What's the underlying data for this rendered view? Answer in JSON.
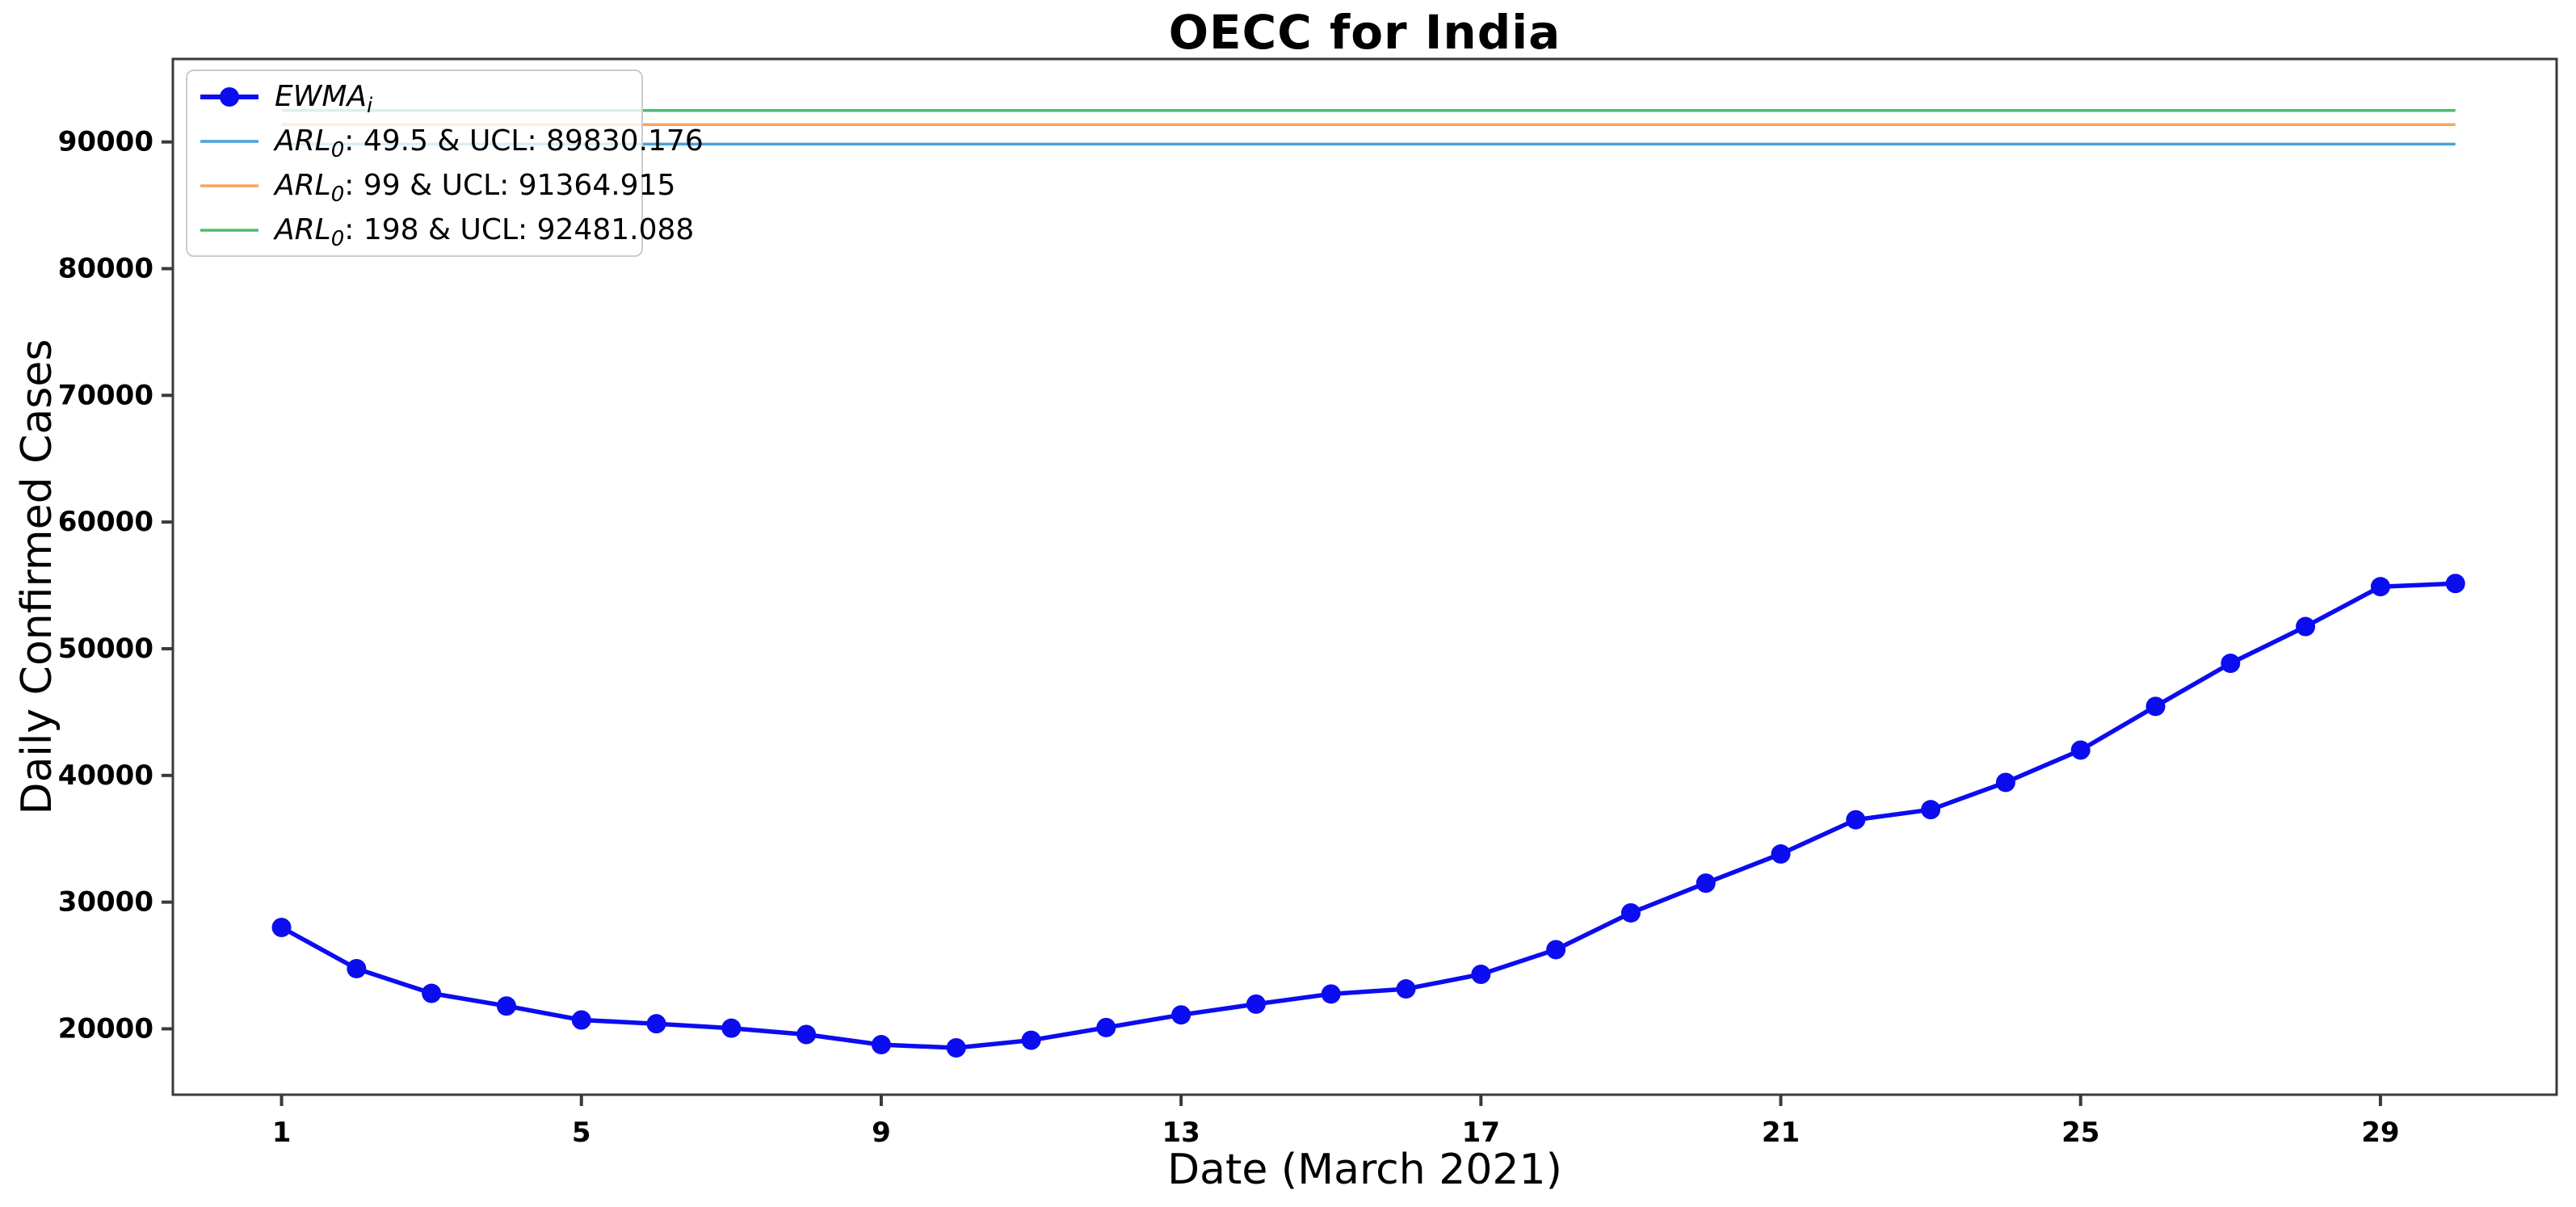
{
  "figure": {
    "title": "OECC for India",
    "xlabel": "Date (March 2021)",
    "ylabel": "Daily Confirmed Cases"
  },
  "legend": {
    "entries": [
      {
        "id": "ewma",
        "math": "EWMA",
        "sub": "i",
        "rest": "",
        "color": "#0c0cf0",
        "style": "line-marker"
      },
      {
        "id": "ucl-49-5",
        "math": "ARL",
        "sub": "0",
        "rest": ": 49.5 & UCL: 89830.176",
        "color": "#47a3d9",
        "style": "line"
      },
      {
        "id": "ucl-99",
        "math": "ARL",
        "sub": "0",
        "rest": ": 99 & UCL: 91364.915",
        "color": "#f8a35c",
        "style": "line"
      },
      {
        "id": "ucl-198",
        "math": "ARL",
        "sub": "0",
        "rest": ": 198 & UCL: 92481.088",
        "color": "#4cbd72",
        "style": "line"
      }
    ]
  },
  "chart_data": {
    "type": "line",
    "title": "OECC for India",
    "xlabel": "Date (March 2021)",
    "ylabel": "Daily Confirmed Cases",
    "x": [
      1,
      2,
      3,
      4,
      5,
      6,
      7,
      8,
      9,
      10,
      11,
      12,
      13,
      14,
      15,
      16,
      17,
      18,
      19,
      20,
      21,
      22,
      23,
      24,
      25,
      26,
      27,
      28,
      29,
      30
    ],
    "series": [
      {
        "name": "EWMA_i",
        "color": "#0c0cf0",
        "marker": "circle",
        "values": [
          28000,
          24750,
          22800,
          21800,
          20700,
          20400,
          20050,
          19550,
          18750,
          18500,
          19100,
          20100,
          21100,
          21950,
          22750,
          23150,
          24300,
          26250,
          29150,
          31500,
          33800,
          36500,
          37300,
          39450,
          42000,
          45450,
          48850,
          51750,
          54900,
          55150
        ]
      }
    ],
    "control_limits": [
      {
        "name": "ARL0: 49.5",
        "ucl": 89830.176,
        "color": "#47a3d9"
      },
      {
        "name": "ARL0: 99",
        "ucl": 91364.915,
        "color": "#f8a35c"
      },
      {
        "name": "ARL0: 198",
        "ucl": 92481.088,
        "color": "#4cbd72"
      }
    ],
    "xticks": [
      1,
      5,
      9,
      13,
      17,
      21,
      25,
      29
    ],
    "yticks": [
      20000,
      30000,
      40000,
      50000,
      60000,
      70000,
      80000,
      90000
    ],
    "xlim": [
      -0.45,
      31.35
    ],
    "ylim": [
      14800,
      96550
    ],
    "grid": false,
    "legend_position": "upper-left",
    "axis_color": "#3a3a3a",
    "tick_label_color": "#000000"
  }
}
